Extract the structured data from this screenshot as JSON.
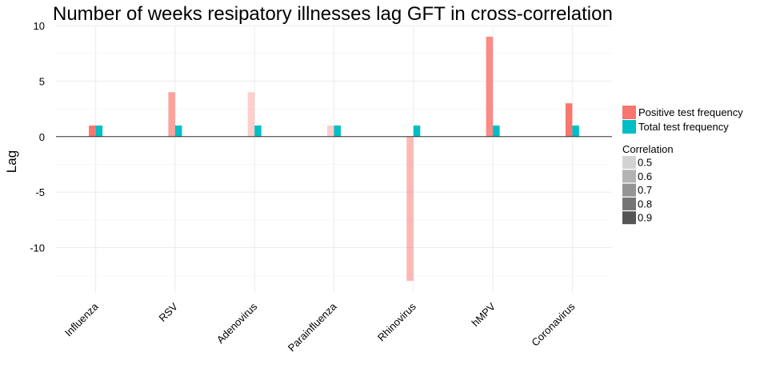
{
  "chart_data": {
    "type": "bar",
    "title": "Number of weeks resipatory illnesses lag GFT in cross-correlation",
    "xlabel": "",
    "ylabel": "Lag",
    "ylim": [
      -14,
      10
    ],
    "yticks": [
      10,
      5,
      0,
      -5,
      -10
    ],
    "grid": true,
    "legend_position": "right",
    "categories": [
      "Influenza",
      "RSV",
      "Adenovirus",
      "Parainfluenza",
      "Rhinovirus",
      "hMPV",
      "Coronavirus"
    ],
    "series": [
      {
        "name": "Positive test frequency",
        "color": "#F8766D",
        "values": [
          1,
          4,
          4,
          1,
          -13,
          9,
          3
        ],
        "correlation": [
          0.9,
          0.7,
          0.5,
          0.5,
          0.6,
          0.8,
          0.9
        ]
      },
      {
        "name": "Total test frequency",
        "color": "#00BFC4",
        "values": [
          1,
          1,
          1,
          1,
          1,
          1,
          1
        ],
        "correlation": [
          0.9,
          0.9,
          0.9,
          0.9,
          0.9,
          0.9,
          0.9
        ]
      }
    ],
    "correlation_legend": {
      "title": "Correlation",
      "levels": [
        "0.5",
        "0.6",
        "0.7",
        "0.8",
        "0.9"
      ],
      "colors": [
        "#d2d2d2",
        "#b3b3b3",
        "#949494",
        "#747474",
        "#555555"
      ]
    }
  }
}
